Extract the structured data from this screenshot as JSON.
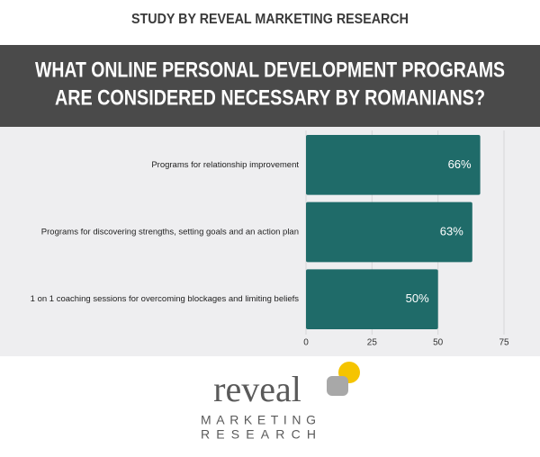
{
  "chart_data": {
    "type": "barh",
    "header": "STUDY BY REVEAL MARKETING RESEARCH",
    "title": [
      "WHAT ONLINE PERSONAL DEVELOPMENT PROGRAMS",
      "ARE CONSIDERED NECESSARY BY ROMANIANS?"
    ],
    "categories": [
      "Programs for relationship improvement",
      "Programs for discovering strengths, setting goals and an action plan",
      "1 on 1 coaching sessions for overcoming blockages and limiting beliefs"
    ],
    "values": [
      66,
      63,
      50
    ],
    "value_labels": [
      "66%",
      "63%",
      "50%"
    ],
    "color": "#1f6b69",
    "xlim": [
      0,
      75
    ],
    "xticks": [
      0,
      25,
      50,
      75
    ],
    "grid": true,
    "logo": {
      "word": "reveal",
      "line1": "MARKETING",
      "line2": "RESEARCH"
    }
  }
}
